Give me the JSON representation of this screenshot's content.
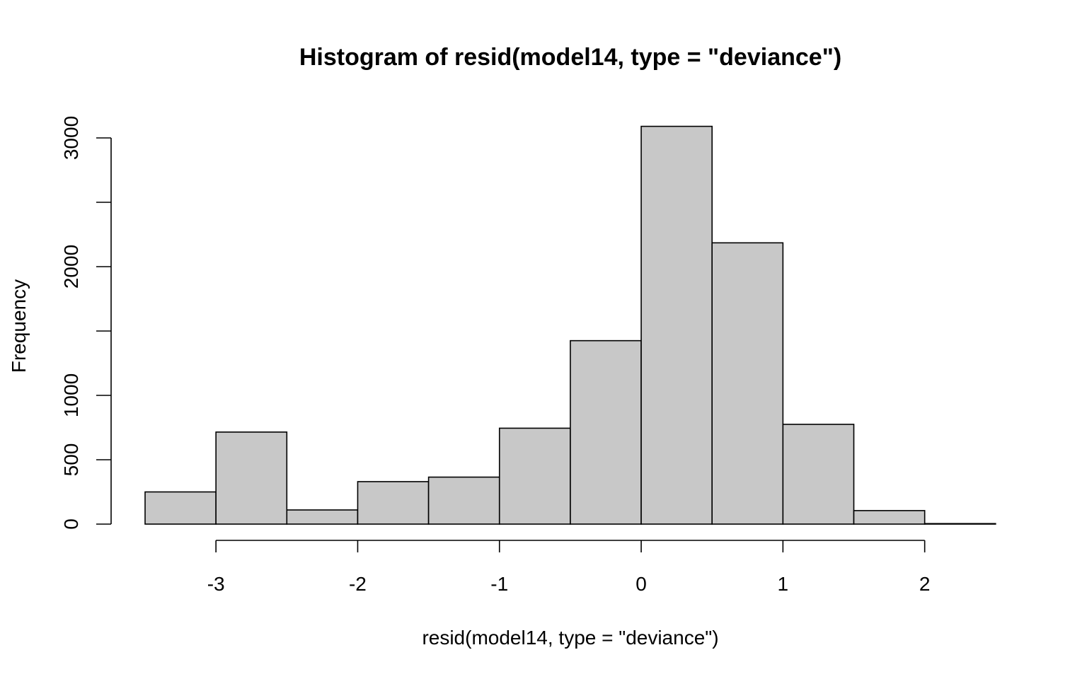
{
  "chart_data": {
    "type": "bar",
    "title": "Histogram of resid(model14, type = \"deviance\")",
    "xlabel": "resid(model14, type = \"deviance\")",
    "ylabel": "Frequency",
    "bins": [
      {
        "start": -3.5,
        "end": -3.0,
        "count": 250
      },
      {
        "start": -3.0,
        "end": -2.5,
        "count": 715
      },
      {
        "start": -2.5,
        "end": -2.0,
        "count": 110
      },
      {
        "start": -2.0,
        "end": -1.5,
        "count": 330
      },
      {
        "start": -1.5,
        "end": -1.0,
        "count": 365
      },
      {
        "start": -1.0,
        "end": -0.5,
        "count": 745
      },
      {
        "start": -0.5,
        "end": 0.0,
        "count": 1425
      },
      {
        "start": 0.0,
        "end": 0.5,
        "count": 3090
      },
      {
        "start": 0.5,
        "end": 1.0,
        "count": 2185
      },
      {
        "start": 1.0,
        "end": 1.5,
        "count": 775
      },
      {
        "start": 1.5,
        "end": 2.0,
        "count": 105
      },
      {
        "start": 2.0,
        "end": 2.5,
        "count": 4
      }
    ],
    "xlim": [
      -3.5,
      2.5
    ],
    "ylim": [
      0,
      3000
    ],
    "x_ticks": [
      -3,
      -2,
      -1,
      0,
      1,
      2
    ],
    "x_tick_labels": [
      "-3",
      "-2",
      "-1",
      "0",
      "1",
      "2"
    ],
    "y_ticks": [
      0,
      500,
      1000,
      1500,
      2000,
      2500,
      3000
    ],
    "y_tick_labels": [
      "0",
      "500",
      "1000",
      "",
      "2000",
      "",
      "3000"
    ],
    "bar_fill": "#c8c8c8",
    "bar_stroke": "#000000",
    "grid": false,
    "legend": "none"
  }
}
